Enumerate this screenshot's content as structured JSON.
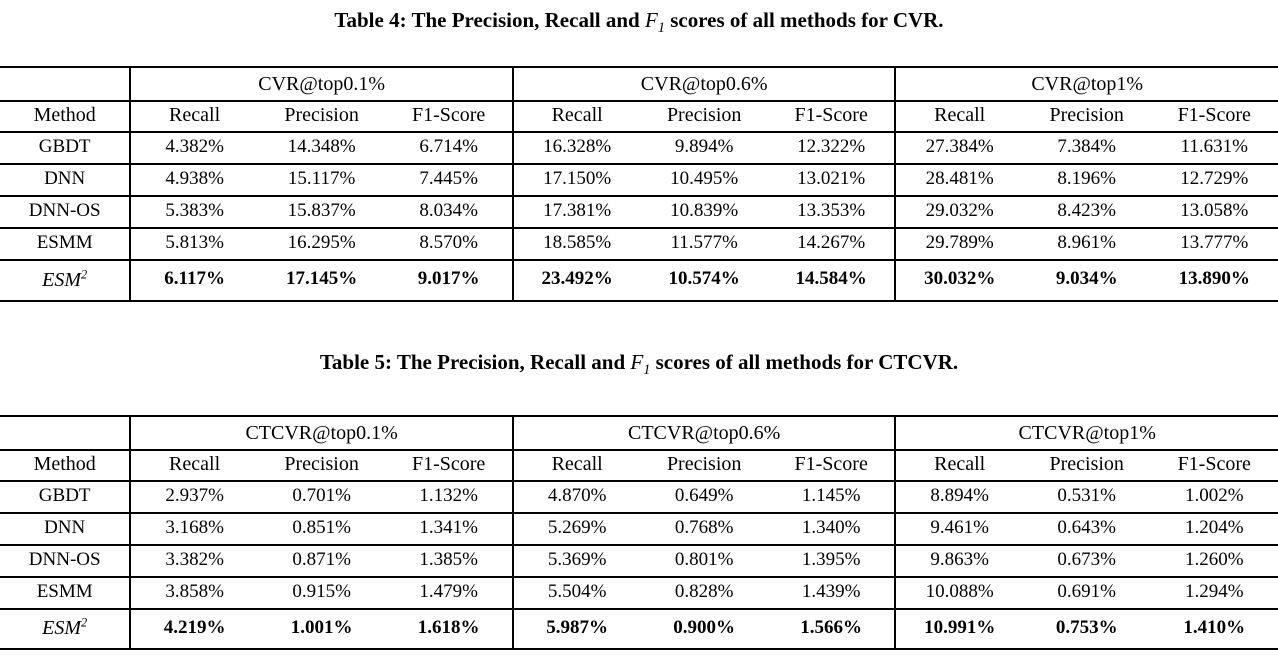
{
  "tables": [
    {
      "caption": {
        "before": "Table 4: The Precision, Recall and ",
        "f1": "F",
        "f1_sub": "1",
        "after": " scores of all methods for CVR."
      },
      "method_header": "Method",
      "groups": [
        {
          "label": "CVR@top0.1%",
          "columns": [
            "Recall",
            "Precision",
            "F1-Score"
          ]
        },
        {
          "label": "CVR@top0.6%",
          "columns": [
            "Recall",
            "Precision",
            "F1-Score"
          ]
        },
        {
          "label": "CVR@top1%",
          "columns": [
            "Recall",
            "Precision",
            "F1-Score"
          ]
        }
      ],
      "rows": [
        {
          "method": "GBDT",
          "emphasis": false,
          "values": [
            "4.382%",
            "14.348%",
            "6.714%",
            "16.328%",
            "9.894%",
            "12.322%",
            "27.384%",
            "7.384%",
            "11.631%"
          ]
        },
        {
          "method": "DNN",
          "emphasis": false,
          "values": [
            "4.938%",
            "15.117%",
            "7.445%",
            "17.150%",
            "10.495%",
            "13.021%",
            "28.481%",
            "8.196%",
            "12.729%"
          ]
        },
        {
          "method": "DNN-OS",
          "emphasis": false,
          "values": [
            "5.383%",
            "15.837%",
            "8.034%",
            "17.381%",
            "10.839%",
            "13.353%",
            "29.032%",
            "8.423%",
            "13.058%"
          ]
        },
        {
          "method": "ESMM",
          "emphasis": false,
          "values": [
            "5.813%",
            "16.295%",
            "8.570%",
            "18.585%",
            "11.577%",
            "14.267%",
            "29.789%",
            "8.961%",
            "13.777%"
          ]
        },
        {
          "method": "ESM",
          "method_sup": "2",
          "emphasis": true,
          "values": [
            "6.117%",
            "17.145%",
            "9.017%",
            "23.492%",
            "10.574%",
            "14.584%",
            "30.032%",
            "9.034%",
            "13.890%"
          ]
        }
      ]
    },
    {
      "caption": {
        "before": "Table 5: The Precision, Recall and ",
        "f1": "F",
        "f1_sub": "1",
        "after": " scores of all methods for CTCVR."
      },
      "method_header": "Method",
      "groups": [
        {
          "label": "CTCVR@top0.1%",
          "columns": [
            "Recall",
            "Precision",
            "F1-Score"
          ]
        },
        {
          "label": "CTCVR@top0.6%",
          "columns": [
            "Recall",
            "Precision",
            "F1-Score"
          ]
        },
        {
          "label": "CTCVR@top1%",
          "columns": [
            "Recall",
            "Precision",
            "F1-Score"
          ]
        }
      ],
      "rows": [
        {
          "method": "GBDT",
          "emphasis": false,
          "values": [
            "2.937%",
            "0.701%",
            "1.132%",
            "4.870%",
            "0.649%",
            "1.145%",
            "8.894%",
            "0.531%",
            "1.002%"
          ]
        },
        {
          "method": "DNN",
          "emphasis": false,
          "values": [
            "3.168%",
            "0.851%",
            "1.341%",
            "5.269%",
            "0.768%",
            "1.340%",
            "9.461%",
            "0.643%",
            "1.204%"
          ]
        },
        {
          "method": "DNN-OS",
          "emphasis": false,
          "values": [
            "3.382%",
            "0.871%",
            "1.385%",
            "5.369%",
            "0.801%",
            "1.395%",
            "9.863%",
            "0.673%",
            "1.260%"
          ]
        },
        {
          "method": "ESMM",
          "emphasis": false,
          "values": [
            "3.858%",
            "0.915%",
            "1.479%",
            "5.504%",
            "0.828%",
            "1.439%",
            "10.088%",
            "0.691%",
            "1.294%"
          ]
        },
        {
          "method": "ESM",
          "method_sup": "2",
          "emphasis": true,
          "values": [
            "4.219%",
            "1.001%",
            "1.618%",
            "5.987%",
            "0.900%",
            "1.566%",
            "10.991%",
            "0.753%",
            "1.410%"
          ]
        }
      ]
    }
  ]
}
